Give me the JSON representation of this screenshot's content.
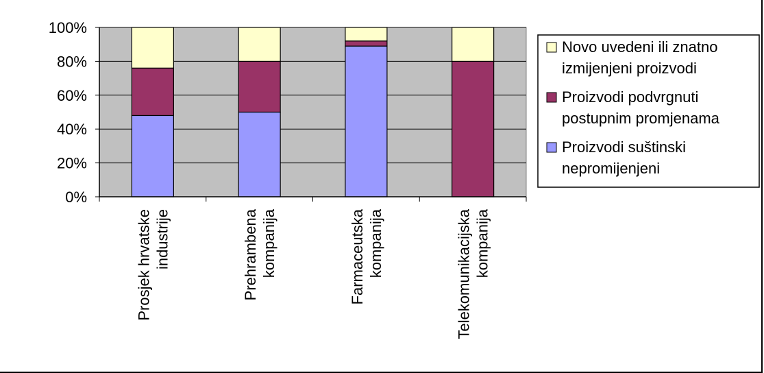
{
  "chart_data": {
    "type": "bar",
    "stacked": "percent",
    "categories": [
      [
        "Prosjek hrvatske",
        "industrije"
      ],
      [
        "Prehrambena",
        "kompanija"
      ],
      [
        "Farmaceutska",
        "kompanija"
      ],
      [
        "Telekomunikacijska",
        "kompanija"
      ]
    ],
    "series": [
      {
        "name": [
          "Proizvodi suštinski",
          "nepromijenjeni"
        ],
        "values": [
          48,
          50,
          89,
          0
        ],
        "color": "#9999ff"
      },
      {
        "name": [
          "Proizvodi podvrgnuti",
          "postupnim promjenama"
        ],
        "values": [
          28,
          30,
          3,
          80
        ],
        "color": "#993366"
      },
      {
        "name": [
          "Novo uvedeni ili znatno",
          "izmijenjeni proizvodi"
        ],
        "values": [
          24,
          20,
          8,
          20
        ],
        "color": "#ffffcc"
      }
    ],
    "y_ticks": [
      "0%",
      "20%",
      "40%",
      "60%",
      "80%",
      "100%"
    ],
    "ylim": [
      0,
      100
    ],
    "plot_background": "#c0c0c0",
    "grid": true,
    "legend_position": "right",
    "title": "",
    "xlabel": "",
    "ylabel": ""
  }
}
